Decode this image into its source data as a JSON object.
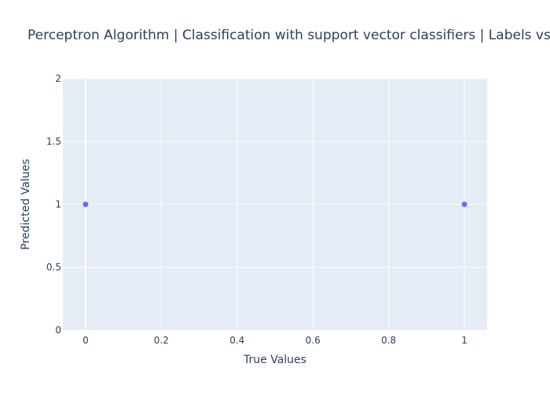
{
  "chart_data": {
    "type": "scatter",
    "title": "Perceptron Algorithm | Classification with support vector classifiers | Labels vs Predicted",
    "xlabel": "True Values",
    "ylabel": "Predicted Values",
    "xlim": [
      -0.06,
      1.06
    ],
    "ylim": [
      0,
      2
    ],
    "x_ticks": [
      0,
      0.2,
      0.4,
      0.6,
      0.8,
      1
    ],
    "x_tick_labels": [
      "0",
      "0.2",
      "0.4",
      "0.6",
      "0.8",
      "1"
    ],
    "y_ticks": [
      0,
      0.5,
      1,
      1.5,
      2
    ],
    "y_tick_labels": [
      "0",
      "0.5",
      "1",
      "1.5",
      "2"
    ],
    "grid": true,
    "legend": "none",
    "colors": {
      "plot_background": "#e5ecf6",
      "grid": "#ffffff",
      "marker": "#636efa",
      "text": "#2a3f5f"
    },
    "series": [
      {
        "x": [
          0,
          1
        ],
        "y": [
          1,
          1
        ]
      }
    ]
  }
}
